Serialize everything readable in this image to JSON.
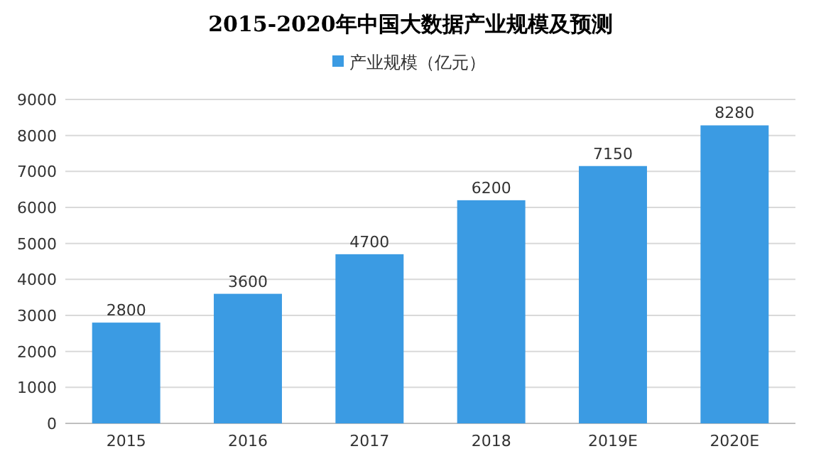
{
  "chart_data": {
    "type": "bar",
    "title": "2015-2020年中国大数据产业规模及预测",
    "categories": [
      "2015",
      "2016",
      "2017",
      "2018",
      "2019E",
      "2020E"
    ],
    "series": [
      {
        "name": "产业规模（亿元）",
        "color": "#3b9be3",
        "values": [
          2800,
          3600,
          4700,
          6200,
          7150,
          8280
        ]
      }
    ],
    "ylim": [
      0,
      9000
    ],
    "yticks": [
      0,
      1000,
      2000,
      3000,
      4000,
      5000,
      6000,
      7000,
      8000,
      9000
    ],
    "grid": "y",
    "legend": "top",
    "data_labels": true
  }
}
